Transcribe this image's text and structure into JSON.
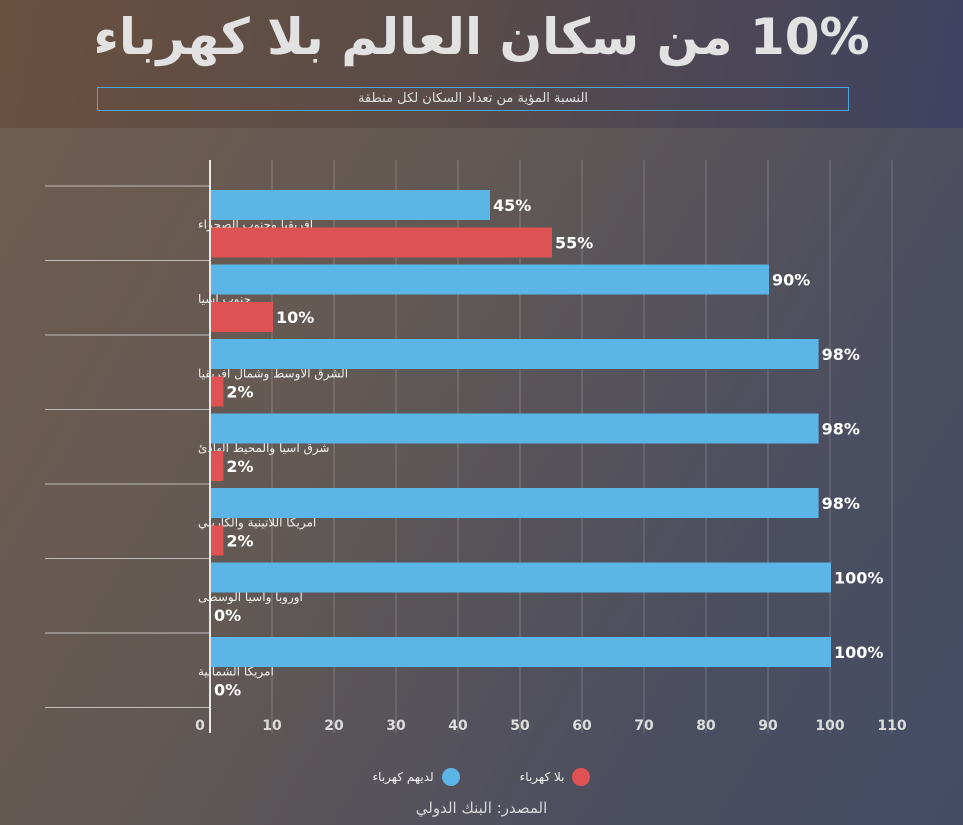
{
  "header": {
    "title": "10% من سكان العالم بلا كهرباء",
    "subtitle": "النسبة المؤية من تعداد السكان لكل منطقة"
  },
  "legend": {
    "with_label": "لديهم كهرباء",
    "without_label": "بلا كهرباء"
  },
  "source": "المصدر: البنك الدولي",
  "colors": {
    "with": "#5bb5e6",
    "without": "#de5254"
  },
  "chart_data": {
    "type": "bar",
    "orientation": "horizontal",
    "categories": [
      "أفريقيا وجنوب الصحراء",
      "جنوب آسيا",
      "الشرق الأوسط وشمال أفريقيا",
      "شرق آسيا والمحيط الهادئ",
      "أمريكا اللاتينية والكاريبي",
      "أوروبا وآسيا الوسطى",
      "أمريكا الشمالية"
    ],
    "series": [
      {
        "name": "لديهم كهرباء",
        "values": [
          45,
          90,
          98,
          98,
          98,
          100,
          100
        ]
      },
      {
        "name": "بلا كهرباء",
        "values": [
          55,
          10,
          2,
          2,
          2,
          0,
          0
        ]
      }
    ],
    "value_labels": [
      [
        "45%",
        "90%",
        "98%",
        "98%",
        "98%",
        "100%",
        "100%"
      ],
      [
        "55%",
        "10%",
        "2%",
        "2%",
        "2%",
        "0%",
        "0%"
      ]
    ],
    "xlim": [
      0,
      110
    ],
    "xticks": [
      "0",
      "10",
      "20",
      "30",
      "40",
      "50",
      "60",
      "70",
      "80",
      "90",
      "100",
      "110"
    ],
    "grid": true
  }
}
